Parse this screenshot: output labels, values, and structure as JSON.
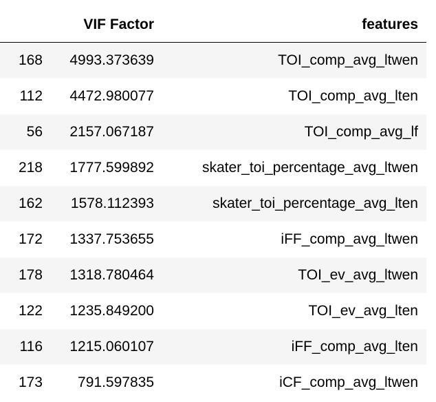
{
  "table": {
    "columns": [
      "",
      "VIF Factor",
      "features"
    ],
    "rows": [
      {
        "index": "168",
        "vif": "4993.373639",
        "feature": "TOI_comp_avg_ltwen"
      },
      {
        "index": "112",
        "vif": "4472.980077",
        "feature": "TOI_comp_avg_lten"
      },
      {
        "index": "56",
        "vif": "2157.067187",
        "feature": "TOI_comp_avg_lf"
      },
      {
        "index": "218",
        "vif": "1777.599892",
        "feature": "skater_toi_percentage_avg_ltwen"
      },
      {
        "index": "162",
        "vif": "1578.112393",
        "feature": "skater_toi_percentage_avg_lten"
      },
      {
        "index": "172",
        "vif": "1337.753655",
        "feature": "iFF_comp_avg_ltwen"
      },
      {
        "index": "178",
        "vif": "1318.780464",
        "feature": "TOI_ev_avg_ltwen"
      },
      {
        "index": "122",
        "vif": "1235.849200",
        "feature": "TOI_ev_avg_lten"
      },
      {
        "index": "116",
        "vif": "1215.060107",
        "feature": "iFF_comp_avg_lten"
      },
      {
        "index": "173",
        "vif": "791.597835",
        "feature": "iCF_comp_avg_ltwen"
      }
    ]
  },
  "colors": {
    "stripe": "#f5f5f5",
    "header_rule": "#000000",
    "text": "#000000"
  }
}
